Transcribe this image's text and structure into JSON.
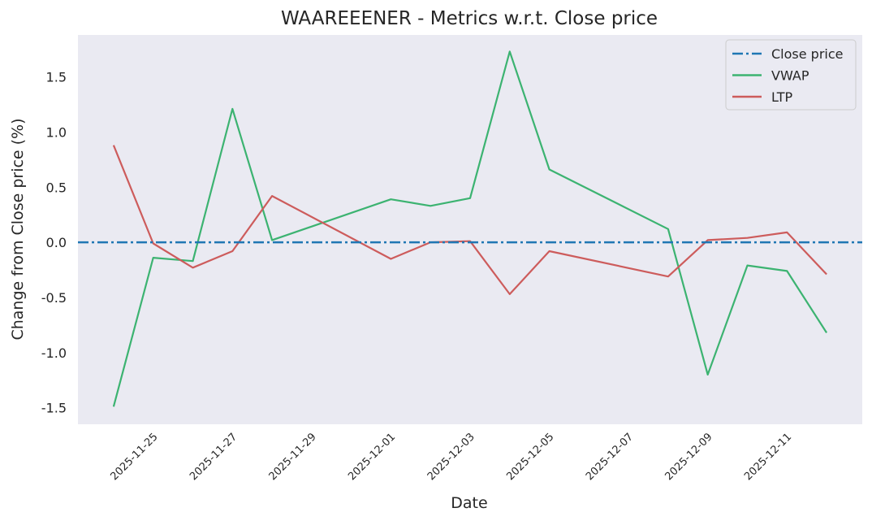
{
  "chart_data": {
    "type": "line",
    "title": "WAAREEENER - Metrics w.r.t. Close price",
    "xlabel": "Date",
    "ylabel": "Change from Close price (%)",
    "x": [
      "2025-11-24",
      "2025-11-25",
      "2025-11-26",
      "2025-11-27",
      "2025-11-28",
      "2025-12-01",
      "2025-12-02",
      "2025-12-03",
      "2025-12-04",
      "2025-12-05",
      "2025-12-08",
      "2025-12-09",
      "2025-12-10",
      "2025-12-11",
      "2025-12-12"
    ],
    "x_ticks": [
      "2025-11-25",
      "2025-11-27",
      "2025-11-29",
      "2025-12-01",
      "2025-12-03",
      "2025-12-05",
      "2025-12-07",
      "2025-12-09",
      "2025-12-11"
    ],
    "xlim": [
      "2025-11-23.1",
      "2025-12-12.9"
    ],
    "y_ticks": [
      -1.5,
      -1.0,
      -0.5,
      0.0,
      0.5,
      1.0,
      1.5
    ],
    "ylim": [
      -1.65,
      1.88
    ],
    "grid": false,
    "legend_position": "upper right",
    "series": [
      {
        "name": "Close price",
        "style": "dashdot",
        "color": "#1f77b4",
        "values": [
          0,
          0,
          0,
          0,
          0,
          0,
          0,
          0,
          0,
          0,
          0,
          0,
          0,
          0,
          0
        ]
      },
      {
        "name": "VWAP",
        "style": "solid",
        "color": "#3cb371",
        "values": [
          -1.49,
          -0.14,
          -0.17,
          1.21,
          0.02,
          0.39,
          0.33,
          0.4,
          1.73,
          0.66,
          0.12,
          -1.2,
          -0.21,
          -0.26,
          -0.82
        ]
      },
      {
        "name": "LTP",
        "style": "solid",
        "color": "#cd5c5c",
        "values": [
          0.88,
          -0.01,
          -0.23,
          -0.08,
          0.42,
          -0.15,
          0.0,
          0.01,
          -0.47,
          -0.08,
          -0.31,
          0.02,
          0.04,
          0.09,
          -0.29
        ]
      }
    ]
  }
}
